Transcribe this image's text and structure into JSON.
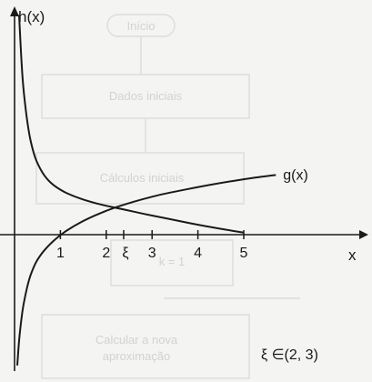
{
  "colors": {
    "ink": "#1a1a1a",
    "background": "#f4f4f2",
    "ghost": "#d2d2d0"
  },
  "background_flowchart": {
    "top_box": "Início",
    "box1": "Dados iniciais",
    "box2": "Cálculos iniciais",
    "box3": "k = 1",
    "box4_line1": "Calcular a nova",
    "box4_line2": "aproximação"
  },
  "chart_data": {
    "type": "line",
    "title": "",
    "xlabel": "x",
    "ylabel": "h(x)",
    "xlim": [
      -0.9,
      6.5
    ],
    "ylim": [
      -2.6,
      4.4
    ],
    "grid": false,
    "xticks": [
      {
        "x": 1,
        "label": "1"
      },
      {
        "x": 2,
        "label": "2"
      },
      {
        "x": 3,
        "label": "3"
      },
      {
        "x": 4,
        "label": "4"
      },
      {
        "x": 5,
        "label": "5"
      }
    ],
    "xi_tick": {
      "x": 2.38,
      "label": "ξ"
    },
    "series": [
      {
        "name": "g(x)",
        "x": [
          0.06,
          0.1,
          0.15,
          0.2,
          0.3,
          0.4,
          0.5,
          0.7,
          1.0,
          1.3,
          1.6,
          2.0,
          2.4,
          2.8,
          3.2,
          3.6,
          4.0,
          4.5,
          5.0,
          5.5,
          5.7
        ],
        "y": [
          -2.5,
          -2.0,
          -1.6,
          -1.3,
          -0.9,
          -0.65,
          -0.47,
          -0.24,
          0.0,
          0.17,
          0.31,
          0.46,
          0.58,
          0.68,
          0.77,
          0.84,
          0.91,
          0.99,
          1.06,
          1.12,
          1.14
        ]
      },
      {
        "name": "",
        "x": [
          0.1,
          0.15,
          0.2,
          0.3,
          0.4,
          0.5,
          0.7,
          1.0,
          1.3,
          1.6,
          2.0,
          2.4,
          2.8,
          3.2,
          3.6,
          4.0,
          4.5,
          5.0
        ],
        "y": [
          4.2,
          3.3,
          2.7,
          2.0,
          1.6,
          1.35,
          1.05,
          0.85,
          0.73,
          0.64,
          0.55,
          0.48,
          0.4,
          0.33,
          0.26,
          0.19,
          0.11,
          0.04
        ]
      }
    ],
    "annotation": "ξ ∈(2, 3)"
  }
}
